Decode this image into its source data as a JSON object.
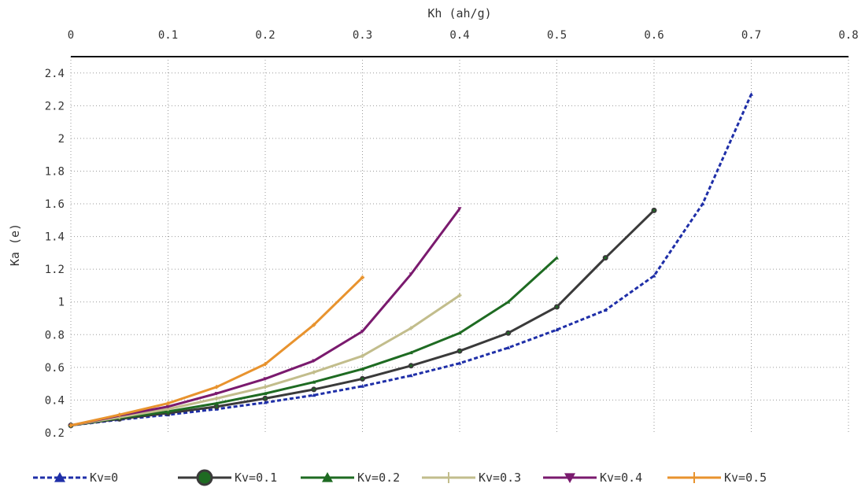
{
  "chart_data": {
    "type": "line",
    "title": "",
    "xlabel": "Kh (ah/g)",
    "ylabel": "Ka (e)",
    "xlim": [
      0,
      0.8
    ],
    "ylim": [
      0.2,
      2.5
    ],
    "x_axis_position": "top",
    "grid": true,
    "legend_position": "bottom",
    "x_ticks": [
      {
        "value": 0,
        "label": "0"
      },
      {
        "value": 0.1,
        "label": "0.1"
      },
      {
        "value": 0.2,
        "label": "0.2"
      },
      {
        "value": 0.3,
        "label": "0.3"
      },
      {
        "value": 0.4,
        "label": "0.4"
      },
      {
        "value": 0.5,
        "label": "0.5"
      },
      {
        "value": 0.6,
        "label": "0.6"
      },
      {
        "value": 0.7,
        "label": "0.7"
      },
      {
        "value": 0.8,
        "label": "0.8"
      }
    ],
    "y_ticks": [
      {
        "value": 0.2,
        "label": "0.2"
      },
      {
        "value": 0.4,
        "label": "0.4"
      },
      {
        "value": 0.6,
        "label": "0.6"
      },
      {
        "value": 0.8,
        "label": "0.8"
      },
      {
        "value": 1.0,
        "label": "1"
      },
      {
        "value": 1.2,
        "label": "1.2"
      },
      {
        "value": 1.4,
        "label": "1.4"
      },
      {
        "value": 1.6,
        "label": "1.6"
      },
      {
        "value": 1.8,
        "label": "1.8"
      },
      {
        "value": 2.0,
        "label": "2"
      },
      {
        "value": 2.2,
        "label": "2.2"
      },
      {
        "value": 2.4,
        "label": "2.4"
      }
    ],
    "series": [
      {
        "name": "Kv=0",
        "color": "#1f2fa8",
        "dash": true,
        "marker": "triangle-up",
        "x": [
          0,
          0.05,
          0.1,
          0.15,
          0.2,
          0.25,
          0.3,
          0.35,
          0.4,
          0.45,
          0.5,
          0.55,
          0.6,
          0.65,
          0.7
        ],
        "y": [
          0.245,
          0.28,
          0.31,
          0.345,
          0.385,
          0.43,
          0.485,
          0.55,
          0.625,
          0.72,
          0.83,
          0.95,
          1.16,
          1.6,
          2.27
        ]
      },
      {
        "name": "Kv=0.1",
        "color": "#3a3a3a",
        "dash": false,
        "marker": "circle",
        "x": [
          0,
          0.05,
          0.1,
          0.15,
          0.2,
          0.25,
          0.3,
          0.35,
          0.4,
          0.45,
          0.5,
          0.55,
          0.6
        ],
        "y": [
          0.245,
          0.285,
          0.32,
          0.36,
          0.41,
          0.465,
          0.53,
          0.61,
          0.7,
          0.81,
          0.97,
          1.27,
          1.56
        ]
      },
      {
        "name": "Kv=0.2",
        "color": "#1e6b22",
        "dash": false,
        "marker": "triangle-up",
        "x": [
          0,
          0.05,
          0.1,
          0.15,
          0.2,
          0.25,
          0.3,
          0.35,
          0.4,
          0.45,
          0.5
        ],
        "y": [
          0.245,
          0.29,
          0.33,
          0.38,
          0.44,
          0.51,
          0.59,
          0.69,
          0.81,
          1.0,
          1.27
        ]
      },
      {
        "name": "Kv=0.3",
        "color": "#c2bd8c",
        "dash": false,
        "marker": "plus",
        "x": [
          0,
          0.05,
          0.1,
          0.15,
          0.2,
          0.25,
          0.3,
          0.35,
          0.4
        ],
        "y": [
          0.245,
          0.295,
          0.345,
          0.41,
          0.48,
          0.57,
          0.67,
          0.84,
          1.04
        ]
      },
      {
        "name": "Kv=0.4",
        "color": "#7a1a6e",
        "dash": false,
        "marker": "triangle-down",
        "x": [
          0,
          0.05,
          0.1,
          0.15,
          0.2,
          0.25,
          0.3,
          0.35,
          0.4
        ],
        "y": [
          0.245,
          0.305,
          0.36,
          0.44,
          0.53,
          0.64,
          0.82,
          1.17,
          1.57
        ]
      },
      {
        "name": "Kv=0.5",
        "color": "#e8932e",
        "dash": false,
        "marker": "plus",
        "x": [
          0,
          0.05,
          0.1,
          0.15,
          0.2,
          0.25,
          0.3
        ],
        "y": [
          0.245,
          0.31,
          0.38,
          0.48,
          0.62,
          0.86,
          1.15
        ]
      }
    ]
  }
}
